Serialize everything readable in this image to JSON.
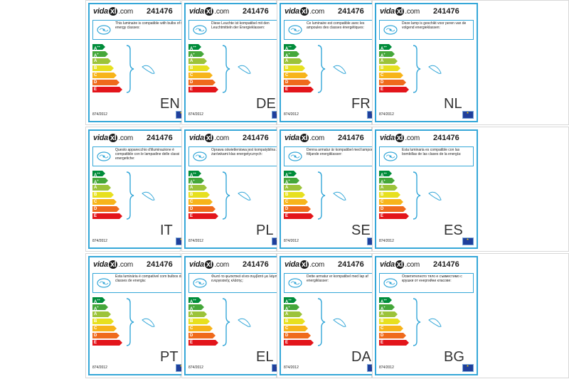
{
  "brand_prefix": "vida",
  "brand_xl": "xl",
  "brand_suffix": ".com",
  "product_code": "241476",
  "regulation": "874/2012",
  "energy_classes": [
    {
      "label": "A",
      "sup": "++",
      "color": "#008c3a"
    },
    {
      "label": "A",
      "sup": "+",
      "color": "#45a73a"
    },
    {
      "label": "A",
      "sup": "",
      "color": "#9cc33a"
    },
    {
      "label": "B",
      "sup": "",
      "color": "#e7e01f"
    },
    {
      "label": "C",
      "sup": "",
      "color": "#f7b41a"
    },
    {
      "label": "D",
      "sup": "",
      "color": "#ef6a1c"
    },
    {
      "label": "E",
      "sup": "",
      "color": "#e3151b"
    }
  ],
  "labels": [
    {
      "lang": "EN",
      "text": "This luminaire is compatible with bulbs of the energy classes:"
    },
    {
      "lang": "DE",
      "text": "Diese Leuchte ist kompatibel mit den Leuchtmitteln der Energieklassen:"
    },
    {
      "lang": "FR",
      "text": "Ce luminaire est compatible avec les ampoules des classes énergétiques:"
    },
    {
      "lang": "NL",
      "text": "Deze lamp is geschikt voor peren van de volgend energieklassen:"
    },
    {
      "lang": "IT",
      "text": "Questo apparecchio d'illuminazione è compatibile con le lampadine delle classi energetiche:"
    },
    {
      "lang": "PL",
      "text": "Oprawa oświetleniowa jest kompatybilna z żarówkami klas energetycznych:"
    },
    {
      "lang": "SE",
      "text": "Denna armatur är kompatibel med lampor av följande energiklasser:"
    },
    {
      "lang": "ES",
      "text": "Esta luminaria es compatible con las bombillas de las clases de la energía:"
    },
    {
      "lang": "PT",
      "text": "Esta luminária é compatível com bulbos das classes de energia:"
    },
    {
      "lang": "EL",
      "text": "Φωτό το φωτιστικό είναι συμβατό με λάμπες ενεργειακής κλάσης:"
    },
    {
      "lang": "DA",
      "text": "Dette armatur er kompatibel med lap af energiklasser:"
    },
    {
      "lang": "BG",
      "text": "Осветителното тяло е съвместимо с крушки от енергийни класове:"
    }
  ]
}
